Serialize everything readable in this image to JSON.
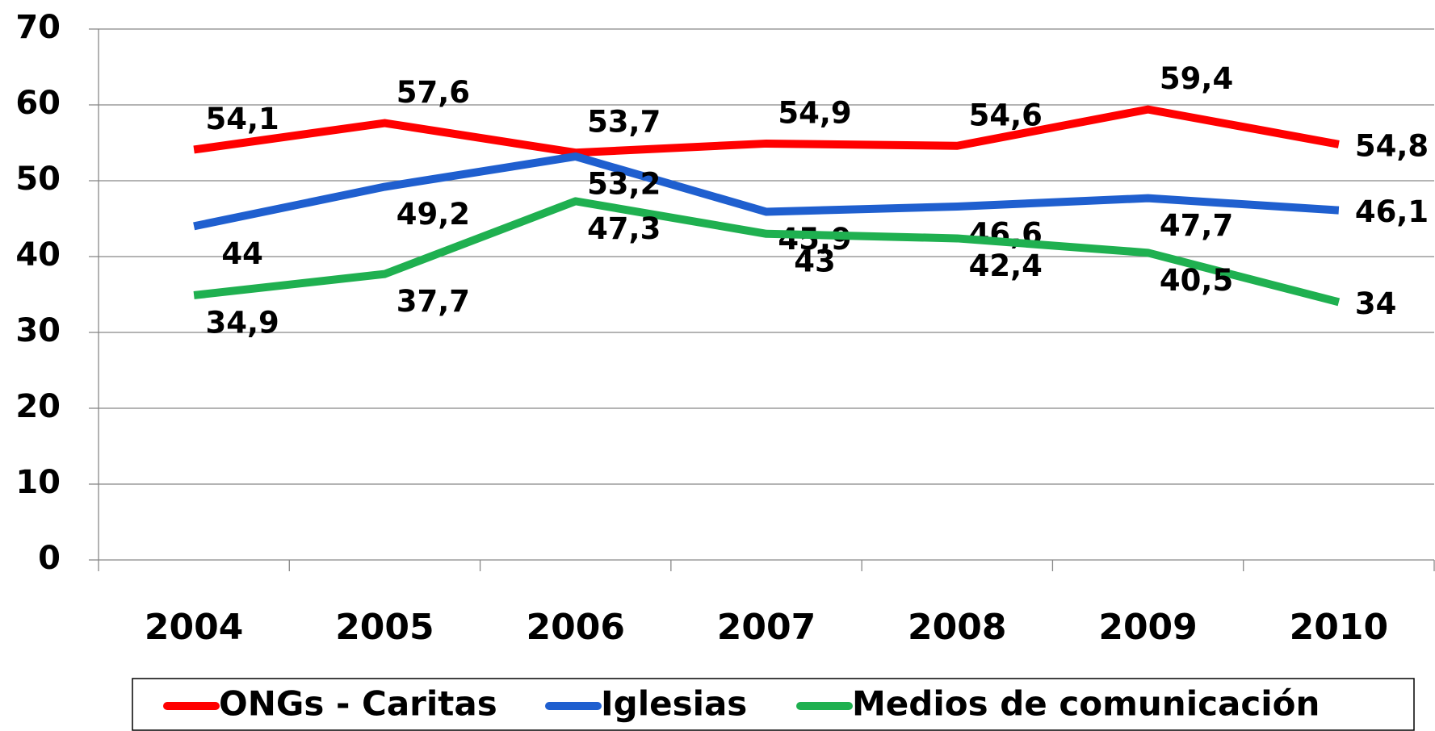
{
  "chart_data": {
    "type": "line",
    "categories": [
      "2004",
      "2005",
      "2006",
      "2007",
      "2008",
      "2009",
      "2010"
    ],
    "series": [
      {
        "name": "ONGs - Caritas",
        "color": "#ff0000",
        "values": [
          54.1,
          57.6,
          53.7,
          54.9,
          54.6,
          59.4,
          54.8
        ],
        "value_labels": [
          "54,1",
          "57,6",
          "53,7",
          "54,9",
          "54,6",
          "59,4",
          "54,8"
        ]
      },
      {
        "name": "Iglesias",
        "color": "#1f5fcf",
        "values": [
          44,
          49.2,
          53.2,
          45.9,
          46.6,
          47.7,
          46.1
        ],
        "value_labels": [
          "44",
          "49,2",
          "53,2",
          "45,9",
          "46,6",
          "47,7",
          "46,1"
        ]
      },
      {
        "name": "Medios de comunicación",
        "color": "#1fb050",
        "values": [
          34.9,
          37.7,
          47.3,
          43,
          42.4,
          40.5,
          34
        ],
        "value_labels": [
          "34,9",
          "37,7",
          "47,3",
          "43",
          "42,4",
          "40,5",
          "34"
        ]
      }
    ],
    "ylim": [
      0,
      70
    ],
    "yticks": [
      0,
      10,
      20,
      30,
      40,
      50,
      60,
      70
    ],
    "grid": true,
    "legend": "bottom"
  }
}
